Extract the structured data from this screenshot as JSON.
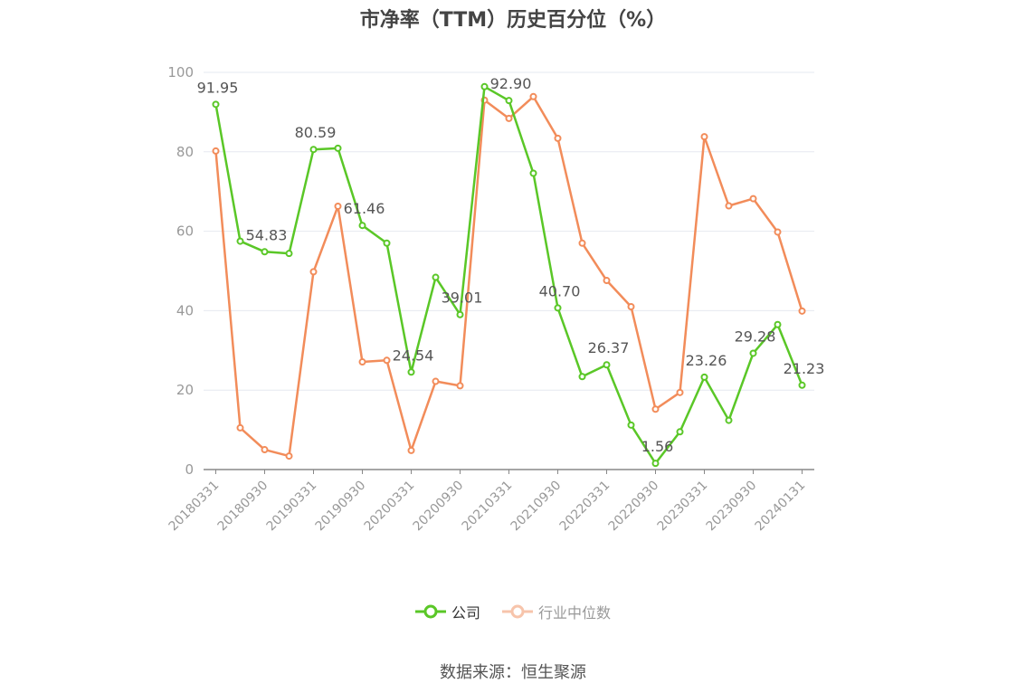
{
  "title": "市净率（TTM）历史百分位（%）",
  "source": "数据来源：恒生聚源",
  "legend": [
    {
      "name": "公司",
      "color": "#5ac727"
    },
    {
      "name": "行业中位数",
      "color": "#f28c5a"
    }
  ],
  "chart_data": {
    "type": "line",
    "title": "市净率（TTM）历史百分位（%）",
    "ylim": [
      0,
      100
    ],
    "yticks": [
      0,
      20,
      40,
      60,
      80,
      100
    ],
    "grid": true,
    "legend_position": "bottom",
    "x_tick_labels": [
      "20180331",
      "20180930",
      "20190331",
      "20190930",
      "20200331",
      "20200930",
      "20210331",
      "20210930",
      "20220331",
      "20220930",
      "20230331",
      "20230930",
      "20240131"
    ],
    "series": [
      {
        "name": "公司",
        "color": "#5ac727",
        "values": [
          91.95,
          57.5,
          54.83,
          54.4,
          80.59,
          80.9,
          61.46,
          57.0,
          24.54,
          48.4,
          39.01,
          96.4,
          92.9,
          74.6,
          40.7,
          23.4,
          26.37,
          11.2,
          1.56,
          9.5,
          23.26,
          12.4,
          29.28,
          36.5,
          21.23
        ],
        "labels": {
          "0": "91.95",
          "2": "54.83",
          "4": "80.59",
          "6": "61.46",
          "8": "24.54",
          "10": "39.01",
          "12": "92.90",
          "14": "40.70",
          "16": "26.37",
          "18": "1.56",
          "20": "23.26",
          "22": "29.28",
          "24": "21.23"
        }
      },
      {
        "name": "行业中位数",
        "color": "#f28c5a",
        "values": [
          80.2,
          10.5,
          5.0,
          3.4,
          49.8,
          66.3,
          27.1,
          27.5,
          4.8,
          22.2,
          21.1,
          93.0,
          88.4,
          93.9,
          83.4,
          57.0,
          47.6,
          41.0,
          15.2,
          19.4,
          83.8,
          66.4,
          68.2,
          59.8,
          39.9
        ]
      }
    ]
  }
}
